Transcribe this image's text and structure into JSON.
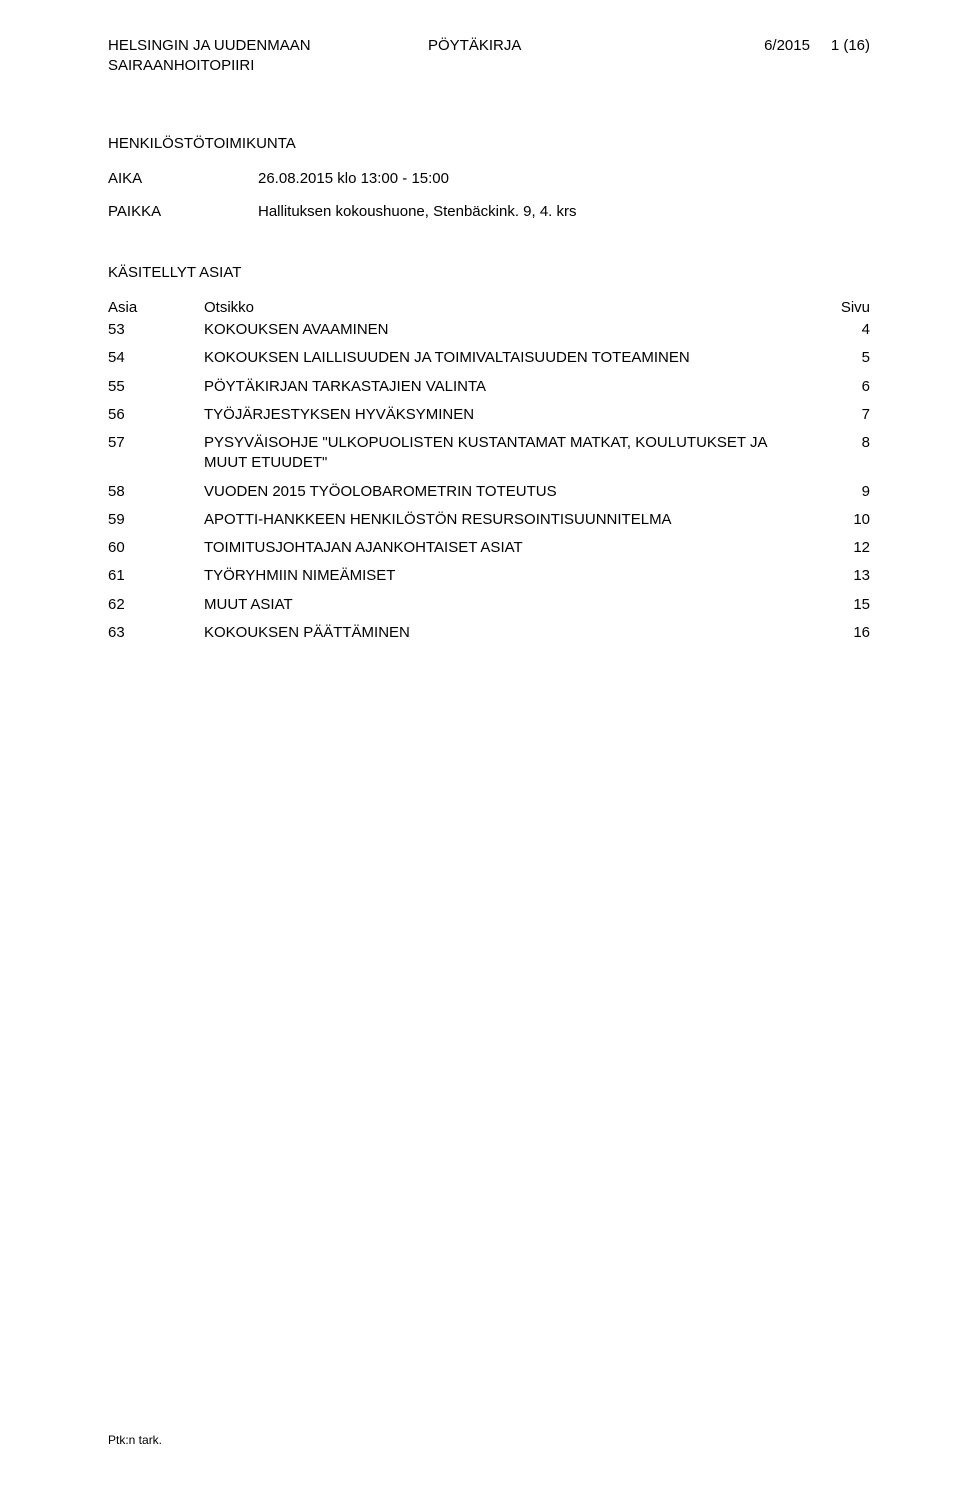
{
  "header": {
    "org_line1": "HELSINGIN JA UUDENMAAN",
    "org_line2": "SAIRAANHOITOPIIRI",
    "doc_type": "PÖYTÄKIRJA",
    "doc_number": "6/2015",
    "page_indicator": "1 (16)"
  },
  "section_title": "HENKILÖSTÖTOIMIKUNTA",
  "meta": {
    "time_label": "AIKA",
    "time_value": "26.08.2015 klo 13:00 - 15:00",
    "place_label": "PAIKKA",
    "place_value": "Hallituksen kokoushuone, Stenbäckink. 9, 4. krs"
  },
  "handled_title": "KÄSITELLYT ASIAT",
  "columns": {
    "asia": "Asia",
    "otsikko": "Otsikko",
    "sivu": "Sivu"
  },
  "rows": [
    {
      "asia": "53",
      "otsikko": "KOKOUKSEN AVAAMINEN",
      "sivu": "4"
    },
    {
      "asia": "54",
      "otsikko": "KOKOUKSEN LAILLISUUDEN JA TOIMIVALTAISUUDEN TOTEAMINEN",
      "sivu": "5"
    },
    {
      "asia": "55",
      "otsikko": "PÖYTÄKIRJAN TARKASTAJIEN VALINTA",
      "sivu": "6"
    },
    {
      "asia": "56",
      "otsikko": "TYÖJÄRJESTYKSEN HYVÄKSYMINEN",
      "sivu": "7"
    },
    {
      "asia": "57",
      "otsikko": "PYSYVÄISOHJE \"ULKOPUOLISTEN KUSTANTAMAT MATKAT, KOULUTUKSET JA MUUT ETUUDET\"",
      "sivu": "8"
    },
    {
      "asia": "58",
      "otsikko": "VUODEN 2015 TYÖOLOBAROMETRIN TOTEUTUS",
      "sivu": "9"
    },
    {
      "asia": "59",
      "otsikko": "APOTTI-HANKKEEN HENKILÖSTÖN RESURSOINTISUUNNITELMA",
      "sivu": "10"
    },
    {
      "asia": "60",
      "otsikko": "TOIMITUSJOHTAJAN AJANKOHTAISET ASIAT",
      "sivu": "12"
    },
    {
      "asia": "61",
      "otsikko": "TYÖRYHMIIN NIMEÄMISET",
      "sivu": "13"
    },
    {
      "asia": "62",
      "otsikko": "MUUT ASIAT",
      "sivu": "15"
    },
    {
      "asia": "63",
      "otsikko": "KOKOUKSEN PÄÄTTÄMINEN",
      "sivu": "16"
    }
  ],
  "footer": "Ptk:n tark."
}
